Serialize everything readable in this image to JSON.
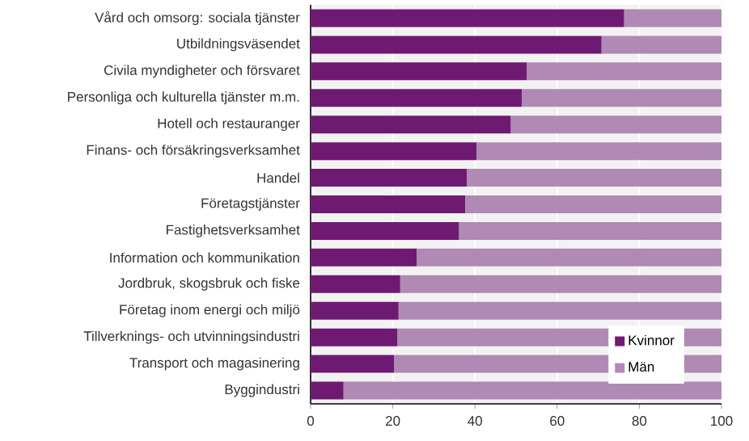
{
  "chart_data": {
    "type": "bar",
    "orientation": "horizontal",
    "stacked": true,
    "categories": [
      "Vård och omsorg: sociala tjänster",
      "Utbildningsväsendet",
      "Civila myndigheter och försvaret",
      "Personliga och kulturella tjänster m.m.",
      "Hotell och restauranger",
      "Finans- och försäkringsverksamhet",
      "Handel",
      "Företagstjänster",
      "Fastighetsverksamhet",
      "Information och kommunikation",
      "Jordbruk, skogsbruk och fiske",
      "Företag inom energi och miljö",
      "Tillverknings- och utvinningsindustri",
      "Transport och magasinering",
      "Byggindustri"
    ],
    "series": [
      {
        "name": "Kvinnor",
        "color": "#6e1a72",
        "values": [
          76.3,
          70.8,
          52.6,
          51.4,
          48.7,
          40.4,
          38.0,
          37.6,
          36.1,
          25.8,
          21.8,
          21.4,
          21.1,
          20.3,
          8.0
        ]
      },
      {
        "name": "Män",
        "color": "#b08ab5",
        "values": [
          23.7,
          29.2,
          47.4,
          48.6,
          51.3,
          59.6,
          62.0,
          62.4,
          63.9,
          74.2,
          78.2,
          78.6,
          78.9,
          79.7,
          92.0
        ]
      }
    ],
    "xlim": [
      0,
      100
    ],
    "xticks": [
      0,
      20,
      40,
      60,
      80,
      100
    ],
    "grid": "x",
    "legend": "bottom right"
  }
}
